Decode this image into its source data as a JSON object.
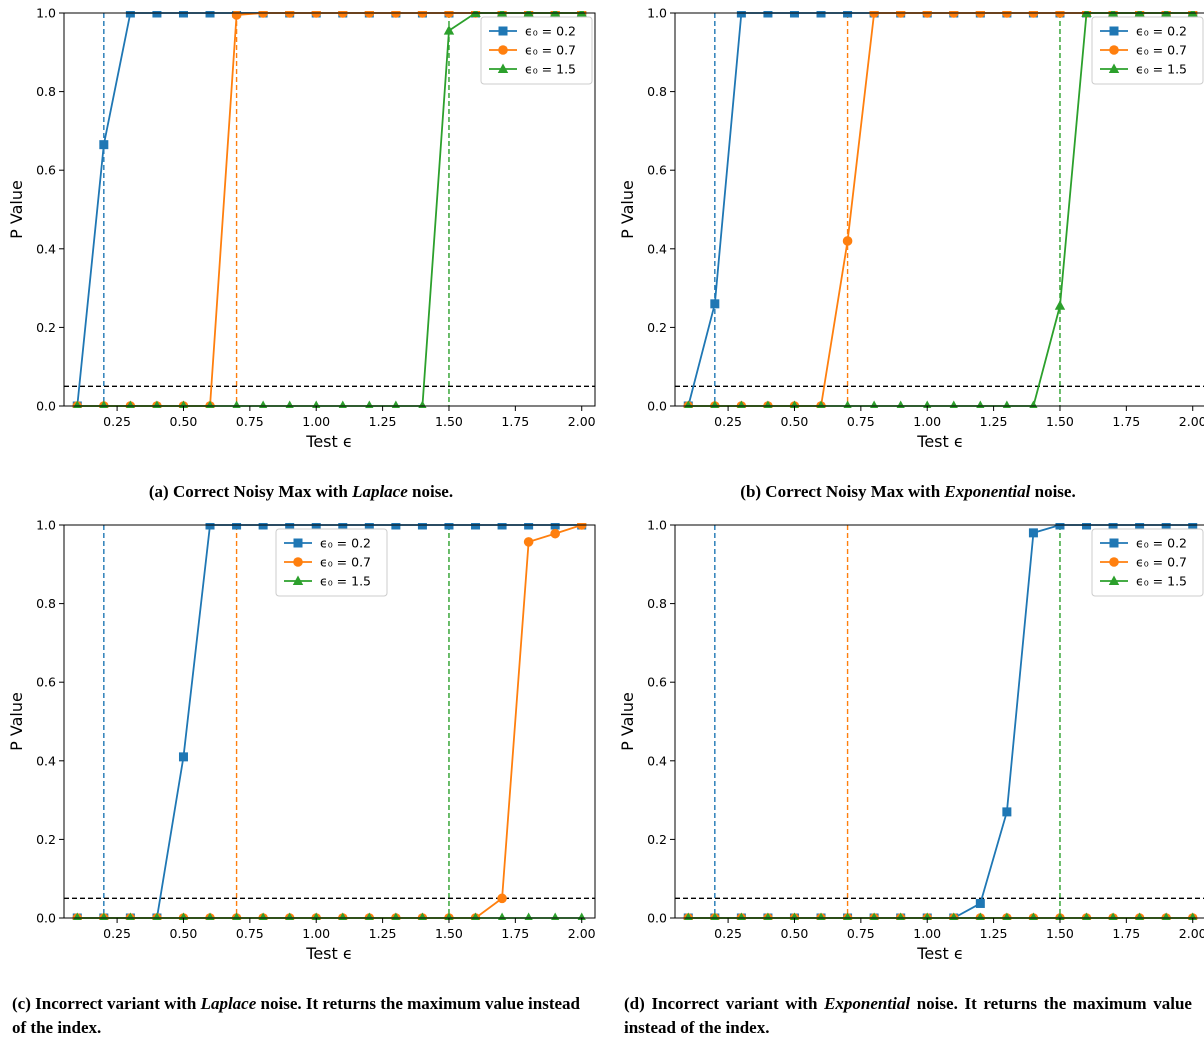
{
  "colors": {
    "s0": "#1f77b4",
    "s1": "#ff7f0e",
    "s2": "#2ca02c",
    "threshold": "#000000"
  },
  "x_ticks": [
    "0.25",
    "0.50",
    "0.75",
    "1.00",
    "1.25",
    "1.50",
    "1.75",
    "2.00"
  ],
  "y_ticks": [
    "0.0",
    "0.2",
    "0.4",
    "0.6",
    "0.8",
    "1.0"
  ],
  "chart_data": [
    {
      "type": "line",
      "caption": {
        "prefix": "(a) Correct Noisy Max with ",
        "noise": "Laplace",
        "suffix": " noise."
      },
      "xlabel": "Test ϵ",
      "ylabel": "P Value",
      "xlim": [
        0.05,
        2.05
      ],
      "ylim": [
        0.0,
        1.0
      ],
      "threshold": 0.05,
      "vlines": [
        0.2,
        0.7,
        1.5
      ],
      "legend": "top-right",
      "x": [
        0.1,
        0.2,
        0.3,
        0.4,
        0.5,
        0.6,
        0.7,
        0.8,
        0.9,
        1.0,
        1.1,
        1.2,
        1.3,
        1.4,
        1.5,
        1.6,
        1.7,
        1.8,
        1.9,
        2.0
      ],
      "series": [
        {
          "name": "ϵ₀ = 0.2",
          "marker": "square",
          "values": [
            0,
            0.665,
            1,
            1,
            1,
            1,
            1,
            1,
            1,
            1,
            1,
            1,
            1,
            1,
            1,
            1,
            1,
            1,
            1,
            1
          ]
        },
        {
          "name": "ϵ₀ = 0.7",
          "marker": "circle",
          "values": [
            0,
            0,
            0,
            0,
            0,
            0,
            0.995,
            1,
            1,
            1,
            1,
            1,
            1,
            1,
            1,
            1,
            1,
            1,
            1,
            1
          ]
        },
        {
          "name": "ϵ₀ = 1.5",
          "marker": "triangle",
          "values": [
            0,
            0,
            0,
            0,
            0,
            0,
            0,
            0,
            0,
            0,
            0,
            0,
            0,
            0,
            0.955,
            1,
            1,
            1,
            1,
            1
          ]
        }
      ]
    },
    {
      "type": "line",
      "caption": {
        "prefix": "(b) Correct Noisy Max with ",
        "noise": "Exponential",
        "suffix": " noise."
      },
      "xlabel": "Test ϵ",
      "ylabel": "P Value",
      "xlim": [
        0.05,
        2.05
      ],
      "ylim": [
        0.0,
        1.0
      ],
      "threshold": 0.05,
      "vlines": [
        0.2,
        0.7,
        1.5
      ],
      "legend": "top-right",
      "x": [
        0.1,
        0.2,
        0.3,
        0.4,
        0.5,
        0.6,
        0.7,
        0.8,
        0.9,
        1.0,
        1.1,
        1.2,
        1.3,
        1.4,
        1.5,
        1.6,
        1.7,
        1.8,
        1.9,
        2.0
      ],
      "series": [
        {
          "name": "ϵ₀ = 0.2",
          "marker": "square",
          "values": [
            0,
            0.26,
            1,
            1,
            1,
            1,
            1,
            1,
            1,
            1,
            1,
            1,
            1,
            1,
            1,
            1,
            1,
            1,
            1,
            1
          ]
        },
        {
          "name": "ϵ₀ = 0.7",
          "marker": "circle",
          "values": [
            0,
            0,
            0,
            0,
            0,
            0,
            0.42,
            1,
            1,
            1,
            1,
            1,
            1,
            1,
            1,
            1,
            1,
            1,
            1,
            1
          ]
        },
        {
          "name": "ϵ₀ = 1.5",
          "marker": "triangle",
          "values": [
            0,
            0,
            0,
            0,
            0,
            0,
            0,
            0,
            0,
            0,
            0,
            0,
            0,
            0,
            0.255,
            1,
            1,
            1,
            1,
            1
          ]
        }
      ]
    },
    {
      "type": "line",
      "caption": {
        "prefix": "(c) Incorrect variant with ",
        "noise": "Laplace",
        "suffix": " noise. It returns the maximum value instead of the index."
      },
      "xlabel": "Test ϵ",
      "ylabel": "P Value",
      "xlim": [
        0.05,
        2.05
      ],
      "ylim": [
        0.0,
        1.0
      ],
      "threshold": 0.05,
      "vlines": [
        0.2,
        0.7,
        1.5
      ],
      "legend": "upper-center",
      "x": [
        0.1,
        0.2,
        0.3,
        0.4,
        0.5,
        0.6,
        0.7,
        0.8,
        0.9,
        1.0,
        1.1,
        1.2,
        1.3,
        1.4,
        1.5,
        1.6,
        1.7,
        1.8,
        1.9,
        2.0
      ],
      "series": [
        {
          "name": "ϵ₀ = 0.2",
          "marker": "square",
          "values": [
            0,
            0,
            0,
            0,
            0.41,
            1,
            1,
            1,
            1,
            1,
            1,
            1,
            1,
            1,
            1,
            1,
            1,
            1,
            1,
            1
          ]
        },
        {
          "name": "ϵ₀ = 0.7",
          "marker": "circle",
          "values": [
            0,
            0,
            0,
            0,
            0,
            0,
            0,
            0,
            0,
            0,
            0,
            0,
            0,
            0,
            0,
            0,
            0.05,
            0.957,
            0.978,
            1.0
          ]
        },
        {
          "name": "ϵ₀ = 1.5",
          "marker": "triangle",
          "values": [
            0,
            0,
            0,
            0,
            0,
            0,
            0,
            0,
            0,
            0,
            0,
            0,
            0,
            0,
            0,
            0,
            0,
            0,
            0,
            0
          ]
        }
      ]
    },
    {
      "type": "line",
      "caption": {
        "prefix": "(d) Incorrect variant with ",
        "noise": "Exponential",
        "suffix": " noise. It returns the maximum value instead of the index."
      },
      "xlabel": "Test ϵ",
      "ylabel": "P Value",
      "xlim": [
        0.05,
        2.05
      ],
      "ylim": [
        0.0,
        1.0
      ],
      "threshold": 0.05,
      "vlines": [
        0.2,
        0.7,
        1.5
      ],
      "legend": "top-right",
      "x": [
        0.1,
        0.2,
        0.3,
        0.4,
        0.5,
        0.6,
        0.7,
        0.8,
        0.9,
        1.0,
        1.1,
        1.2,
        1.3,
        1.4,
        1.5,
        1.6,
        1.7,
        1.8,
        1.9,
        2.0
      ],
      "series": [
        {
          "name": "ϵ₀ = 0.2",
          "marker": "square",
          "values": [
            0,
            0,
            0,
            0,
            0,
            0,
            0,
            0,
            0,
            0,
            0,
            0.037,
            0.27,
            0.98,
            1,
            1,
            1,
            1,
            1,
            1
          ]
        },
        {
          "name": "ϵ₀ = 0.7",
          "marker": "circle",
          "values": [
            0,
            0,
            0,
            0,
            0,
            0,
            0,
            0,
            0,
            0,
            0,
            0,
            0,
            0,
            0,
            0,
            0,
            0,
            0,
            0
          ]
        },
        {
          "name": "ϵ₀ = 1.5",
          "marker": "triangle",
          "values": [
            0,
            0,
            0,
            0,
            0,
            0,
            0,
            0,
            0,
            0,
            0,
            0,
            0,
            0,
            0,
            0,
            0,
            0,
            0,
            0
          ]
        }
      ]
    }
  ]
}
